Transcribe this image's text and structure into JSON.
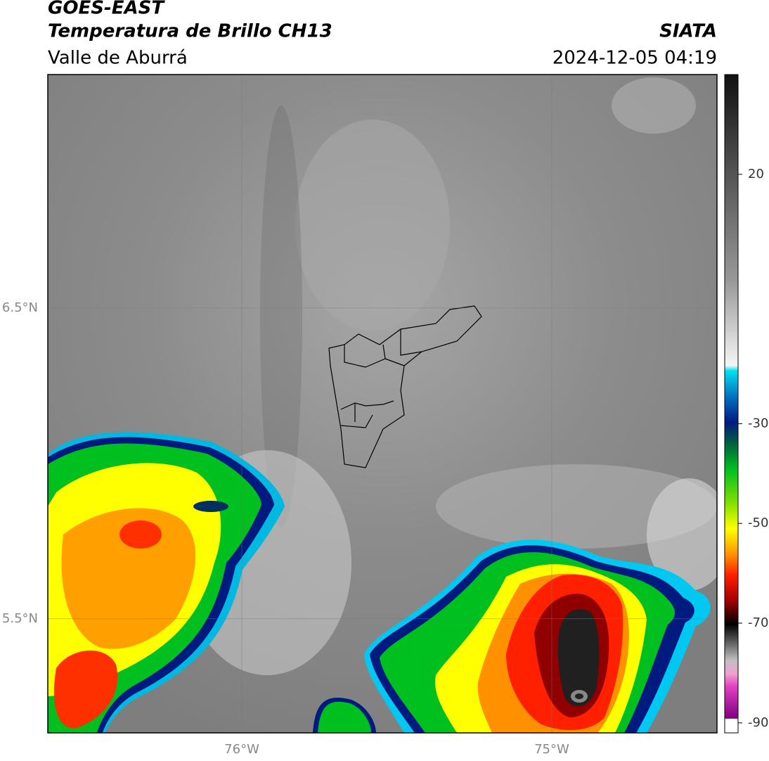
{
  "header": {
    "satellite": "GOES-EAST",
    "product": "Temperatura de Brillo CH13",
    "region": "Valle de Aburrá",
    "source": "SIATA",
    "datetime": "2024-12-05 04:19"
  },
  "map": {
    "xlim": [
      -76.626,
      -74.467
    ],
    "ylim": [
      5.133,
      7.251
    ],
    "xticks": [
      {
        "value": -76,
        "label": "76°W"
      },
      {
        "value": -75,
        "label": "75°W"
      }
    ],
    "yticks": [
      {
        "value": 6.5,
        "label": "6.5°N"
      },
      {
        "value": 5.5,
        "label": "5.5°N"
      }
    ],
    "grid": true
  },
  "colorbar": {
    "lim": [
      -92,
      40
    ],
    "ticks": [
      20,
      -30,
      -50,
      -70,
      -90
    ]
  }
}
